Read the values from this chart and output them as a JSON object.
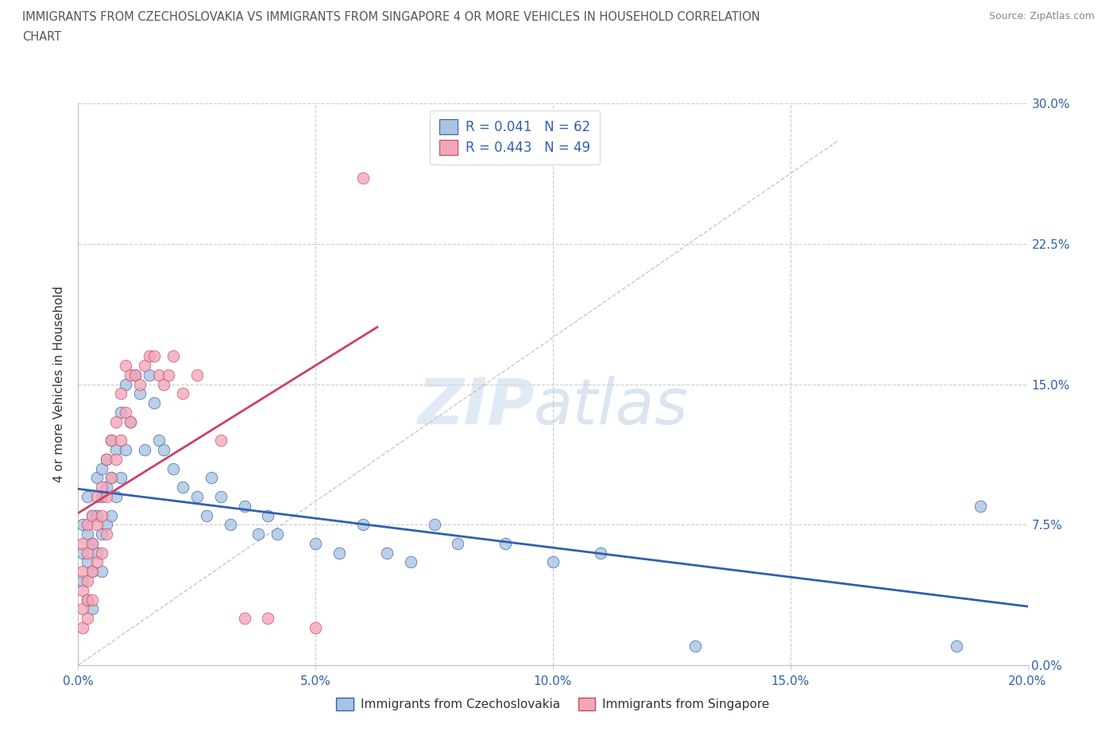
{
  "title_line1": "IMMIGRANTS FROM CZECHOSLOVAKIA VS IMMIGRANTS FROM SINGAPORE 4 OR MORE VEHICLES IN HOUSEHOLD CORRELATION",
  "title_line2": "CHART",
  "source": "Source: ZipAtlas.com",
  "ylabel": "4 or more Vehicles in Household",
  "xlim": [
    0.0,
    0.2
  ],
  "ylim": [
    0.0,
    0.3
  ],
  "xticks": [
    0.0,
    0.05,
    0.1,
    0.15,
    0.2
  ],
  "yticks": [
    0.0,
    0.075,
    0.15,
    0.225,
    0.3
  ],
  "xtick_labels": [
    "0.0%",
    "5.0%",
    "10.0%",
    "15.0%",
    "20.0%"
  ],
  "ytick_labels": [
    "0.0%",
    "7.5%",
    "15.0%",
    "22.5%",
    "30.0%"
  ],
  "color_czech": "#aac4e0",
  "color_singapore": "#f0a8b8",
  "line_color_czech": "#3060b0",
  "line_color_singapore": "#d04060",
  "R_czech": 0.041,
  "N_czech": 62,
  "R_singapore": 0.443,
  "N_singapore": 49,
  "czech_x": [
    0.001,
    0.001,
    0.001,
    0.002,
    0.002,
    0.002,
    0.002,
    0.003,
    0.003,
    0.003,
    0.003,
    0.004,
    0.004,
    0.004,
    0.005,
    0.005,
    0.005,
    0.005,
    0.006,
    0.006,
    0.006,
    0.007,
    0.007,
    0.007,
    0.008,
    0.008,
    0.009,
    0.009,
    0.01,
    0.01,
    0.011,
    0.012,
    0.013,
    0.014,
    0.015,
    0.016,
    0.017,
    0.018,
    0.02,
    0.022,
    0.025,
    0.027,
    0.028,
    0.03,
    0.032,
    0.035,
    0.038,
    0.04,
    0.042,
    0.05,
    0.055,
    0.06,
    0.065,
    0.07,
    0.075,
    0.08,
    0.09,
    0.1,
    0.11,
    0.13,
    0.185,
    0.19
  ],
  "czech_y": [
    0.075,
    0.06,
    0.045,
    0.09,
    0.07,
    0.055,
    0.035,
    0.08,
    0.065,
    0.05,
    0.03,
    0.1,
    0.08,
    0.06,
    0.105,
    0.09,
    0.07,
    0.05,
    0.11,
    0.095,
    0.075,
    0.12,
    0.1,
    0.08,
    0.115,
    0.09,
    0.135,
    0.1,
    0.15,
    0.115,
    0.13,
    0.155,
    0.145,
    0.115,
    0.155,
    0.14,
    0.12,
    0.115,
    0.105,
    0.095,
    0.09,
    0.08,
    0.1,
    0.09,
    0.075,
    0.085,
    0.07,
    0.08,
    0.07,
    0.065,
    0.06,
    0.075,
    0.06,
    0.055,
    0.075,
    0.065,
    0.065,
    0.055,
    0.06,
    0.01,
    0.01,
    0.085
  ],
  "singapore_x": [
    0.001,
    0.001,
    0.001,
    0.001,
    0.001,
    0.002,
    0.002,
    0.002,
    0.002,
    0.002,
    0.003,
    0.003,
    0.003,
    0.003,
    0.004,
    0.004,
    0.004,
    0.005,
    0.005,
    0.005,
    0.006,
    0.006,
    0.006,
    0.007,
    0.007,
    0.008,
    0.008,
    0.009,
    0.009,
    0.01,
    0.01,
    0.011,
    0.011,
    0.012,
    0.013,
    0.014,
    0.015,
    0.016,
    0.017,
    0.018,
    0.019,
    0.02,
    0.022,
    0.025,
    0.03,
    0.035,
    0.04,
    0.05,
    0.06
  ],
  "singapore_y": [
    0.065,
    0.05,
    0.04,
    0.03,
    0.02,
    0.075,
    0.06,
    0.045,
    0.035,
    0.025,
    0.08,
    0.065,
    0.05,
    0.035,
    0.09,
    0.075,
    0.055,
    0.095,
    0.08,
    0.06,
    0.11,
    0.09,
    0.07,
    0.12,
    0.1,
    0.13,
    0.11,
    0.145,
    0.12,
    0.16,
    0.135,
    0.155,
    0.13,
    0.155,
    0.15,
    0.16,
    0.165,
    0.165,
    0.155,
    0.15,
    0.155,
    0.165,
    0.145,
    0.155,
    0.12,
    0.025,
    0.025,
    0.02,
    0.26
  ],
  "legend_label_czech": "Immigrants from Czechoslovakia",
  "legend_label_singapore": "Immigrants from Singapore"
}
